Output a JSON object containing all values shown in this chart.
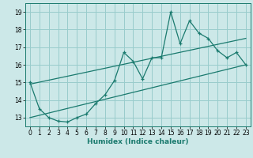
{
  "title": "",
  "xlabel": "Humidex (Indice chaleur)",
  "bg_color": "#cce8e8",
  "grid_color": "#99cccc",
  "line_color": "#1a7a6e",
  "xlim": [
    -0.5,
    23.5
  ],
  "ylim": [
    12.5,
    19.5
  ],
  "yticks": [
    13,
    14,
    15,
    16,
    17,
    18,
    19
  ],
  "xticks": [
    0,
    1,
    2,
    3,
    4,
    5,
    6,
    7,
    8,
    9,
    10,
    11,
    12,
    13,
    14,
    15,
    16,
    17,
    18,
    19,
    20,
    21,
    22,
    23
  ],
  "series1_x": [
    0,
    1,
    2,
    3,
    4,
    5,
    6,
    7,
    8,
    9,
    10,
    11,
    12,
    13,
    14,
    15,
    16,
    17,
    18,
    19,
    20,
    21,
    22,
    23
  ],
  "series1_y": [
    15.0,
    13.5,
    13.0,
    12.8,
    12.75,
    13.0,
    13.2,
    13.8,
    14.3,
    15.1,
    16.7,
    16.2,
    15.2,
    16.4,
    16.4,
    19.0,
    17.2,
    18.5,
    17.8,
    17.5,
    16.8,
    16.4,
    16.7,
    16.0
  ],
  "line1_x": [
    0,
    23
  ],
  "line1_y": [
    14.9,
    17.5
  ],
  "line2_x": [
    0,
    23
  ],
  "line2_y": [
    13.0,
    16.0
  ]
}
